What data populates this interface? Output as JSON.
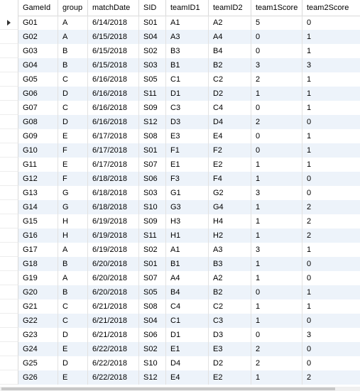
{
  "grid": {
    "columns": [
      "GameId",
      "group",
      "matchDate",
      "SID",
      "teamID1",
      "teamID2",
      "team1Score",
      "team2Score"
    ],
    "rows": [
      [
        "G01",
        "A",
        "6/14/2018",
        "S01",
        "A1",
        "A2",
        "5",
        "0"
      ],
      [
        "G02",
        "A",
        "6/15/2018",
        "S04",
        "A3",
        "A4",
        "0",
        "1"
      ],
      [
        "G03",
        "B",
        "6/15/2018",
        "S02",
        "B3",
        "B4",
        "0",
        "1"
      ],
      [
        "G04",
        "B",
        "6/15/2018",
        "S03",
        "B1",
        "B2",
        "3",
        "3"
      ],
      [
        "G05",
        "C",
        "6/16/2018",
        "S05",
        "C1",
        "C2",
        "2",
        "1"
      ],
      [
        "G06",
        "D",
        "6/16/2018",
        "S11",
        "D1",
        "D2",
        "1",
        "1"
      ],
      [
        "G07",
        "C",
        "6/16/2018",
        "S09",
        "C3",
        "C4",
        "0",
        "1"
      ],
      [
        "G08",
        "D",
        "6/16/2018",
        "S12",
        "D3",
        "D4",
        "2",
        "0"
      ],
      [
        "G09",
        "E",
        "6/17/2018",
        "S08",
        "E3",
        "E4",
        "0",
        "1"
      ],
      [
        "G10",
        "F",
        "6/17/2018",
        "S01",
        "F1",
        "F2",
        "0",
        "1"
      ],
      [
        "G11",
        "E",
        "6/17/2018",
        "S07",
        "E1",
        "E2",
        "1",
        "1"
      ],
      [
        "G12",
        "F",
        "6/18/2018",
        "S06",
        "F3",
        "F4",
        "1",
        "0"
      ],
      [
        "G13",
        "G",
        "6/18/2018",
        "S03",
        "G1",
        "G2",
        "3",
        "0"
      ],
      [
        "G14",
        "G",
        "6/18/2018",
        "S10",
        "G3",
        "G4",
        "1",
        "2"
      ],
      [
        "G15",
        "H",
        "6/19/2018",
        "S09",
        "H3",
        "H4",
        "1",
        "2"
      ],
      [
        "G16",
        "H",
        "6/19/2018",
        "S11",
        "H1",
        "H2",
        "1",
        "2"
      ],
      [
        "G17",
        "A",
        "6/19/2018",
        "S02",
        "A1",
        "A3",
        "3",
        "1"
      ],
      [
        "G18",
        "B",
        "6/20/2018",
        "S01",
        "B1",
        "B3",
        "1",
        "0"
      ],
      [
        "G19",
        "A",
        "6/20/2018",
        "S07",
        "A4",
        "A2",
        "1",
        "0"
      ],
      [
        "G20",
        "B",
        "6/20/2018",
        "S05",
        "B4",
        "B2",
        "0",
        "1"
      ],
      [
        "G21",
        "C",
        "6/21/2018",
        "S08",
        "C4",
        "C2",
        "1",
        "1"
      ],
      [
        "G22",
        "C",
        "6/21/2018",
        "S04",
        "C1",
        "C3",
        "1",
        "0"
      ],
      [
        "G23",
        "D",
        "6/21/2018",
        "S06",
        "D1",
        "D3",
        "0",
        "3"
      ],
      [
        "G24",
        "E",
        "6/22/2018",
        "S02",
        "E1",
        "E3",
        "2",
        "0"
      ],
      [
        "G25",
        "D",
        "6/22/2018",
        "S10",
        "D4",
        "D2",
        "2",
        "0"
      ],
      [
        "G26",
        "E",
        "6/22/2018",
        "S12",
        "E4",
        "E2",
        "1",
        "2"
      ]
    ],
    "selected_row_indicator": "current-row-pointer-icon"
  }
}
